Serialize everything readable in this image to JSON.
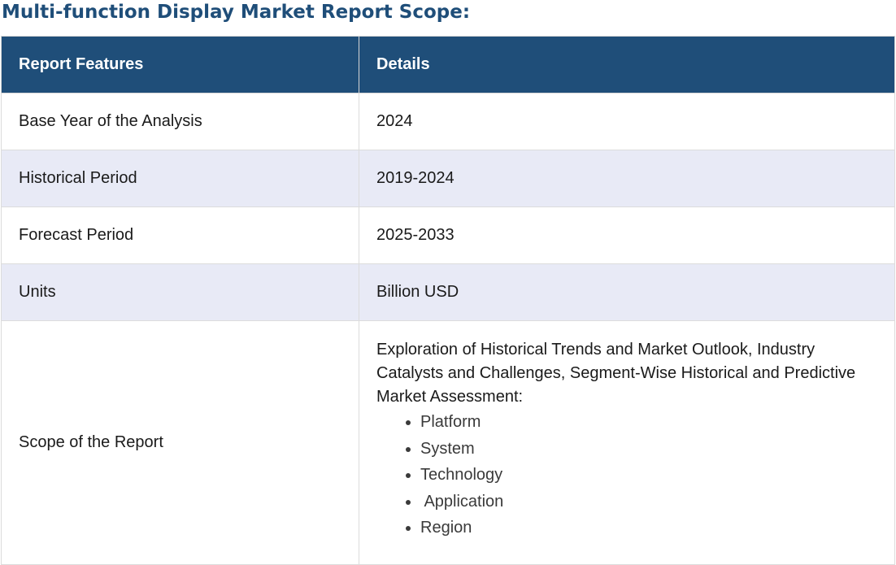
{
  "title": "Multi-function Display Market Report Scope:",
  "table": {
    "headers": [
      "Report Features",
      "Details"
    ],
    "rows": [
      {
        "feature": "Base Year of the Analysis",
        "details": "2024"
      },
      {
        "feature": "Historical Period",
        "details": "2019-2024"
      },
      {
        "feature": "Forecast Period",
        "details": "2025-2033"
      },
      {
        "feature": "Units",
        "details": "Billion USD"
      }
    ],
    "scope": {
      "feature": "Scope of the Report",
      "intro": "Exploration of Historical Trends and Market Outlook, Industry Catalysts and Challenges, Segment-Wise Historical and Predictive Market Assessment:",
      "items": [
        "Platform",
        "System",
        "Technology",
        " Application",
        "Region"
      ]
    }
  },
  "colors": {
    "header_bg": "#1f4e79",
    "title_text": "#1f4e79",
    "alt_row_bg": "#e8eaf6"
  }
}
